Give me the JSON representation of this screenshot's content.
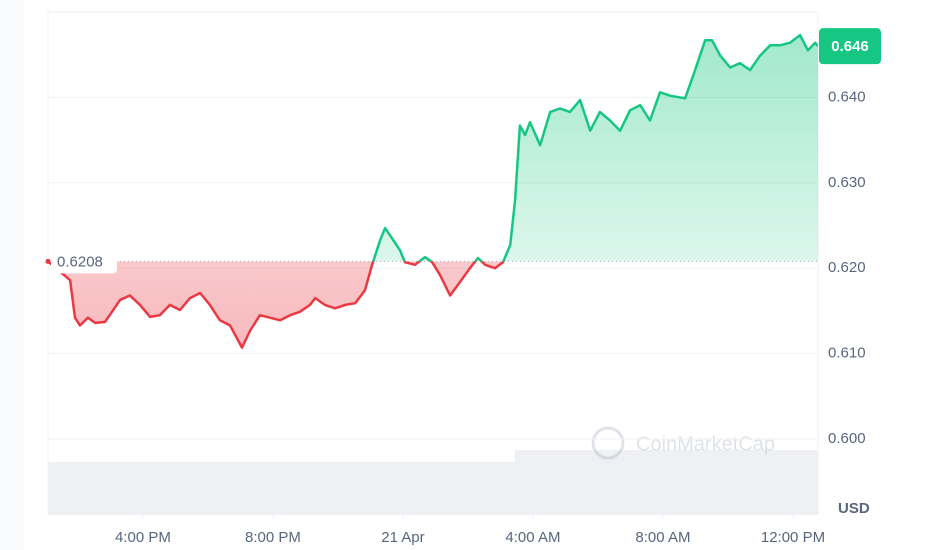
{
  "chart_data": {
    "type": "line",
    "series": [
      {
        "name": "Price",
        "color": "#16c784",
        "color_below": "#ea3943",
        "x": [
          13.08,
          13.76,
          13.91,
          14.06,
          14.31,
          14.53,
          14.83,
          15.05,
          15.3,
          15.6,
          15.91,
          16.22,
          16.52,
          16.83,
          17.14,
          17.45,
          17.76,
          18.06,
          18.37,
          18.68,
          19.05,
          19.3,
          19.6,
          19.91,
          20.22,
          20.53,
          20.83,
          21.14,
          21.3,
          21.6,
          21.91,
          22.22,
          22.53,
          22.83,
          23.05,
          23.3,
          23.45,
          23.7,
          23.91,
          24.06,
          24.37,
          24.68,
          24.9,
          25.14,
          25.45,
          25.76,
          26.06,
          26.31,
          26.53,
          26.83,
          27.08,
          27.3,
          27.45,
          27.6,
          27.76,
          27.91,
          28.22,
          28.53,
          28.83,
          29.14,
          29.45,
          29.76,
          30.06,
          30.37,
          30.68,
          30.99,
          31.3,
          31.6,
          31.91,
          32.22,
          32.68,
          32.99,
          33.3,
          33.51,
          33.76,
          34.07,
          34.37,
          34.68,
          34.99,
          35.3,
          35.6,
          35.91,
          36.22,
          36.46,
          36.68,
          36.77
        ],
        "values": [
          0.6208,
          0.6186,
          0.6142,
          0.6133,
          0.6142,
          0.6136,
          0.6137,
          0.6149,
          0.6163,
          0.6168,
          0.6157,
          0.6143,
          0.6145,
          0.6157,
          0.6151,
          0.6165,
          0.6171,
          0.6157,
          0.6139,
          0.6133,
          0.6107,
          0.6127,
          0.6145,
          0.6142,
          0.6139,
          0.6145,
          0.6149,
          0.6157,
          0.6165,
          0.6157,
          0.6153,
          0.6157,
          0.6159,
          0.6174,
          0.6204,
          0.6233,
          0.6247,
          0.6233,
          0.6221,
          0.6207,
          0.6204,
          0.6213,
          0.6207,
          0.6192,
          0.6168,
          0.6184,
          0.62,
          0.6212,
          0.6204,
          0.62,
          0.6207,
          0.6227,
          0.628,
          0.6367,
          0.6356,
          0.6371,
          0.6344,
          0.6383,
          0.6387,
          0.6383,
          0.6397,
          0.6361,
          0.6383,
          0.6373,
          0.6361,
          0.6385,
          0.6391,
          0.6373,
          0.6406,
          0.6402,
          0.6399,
          0.6432,
          0.6467,
          0.6467,
          0.6449,
          0.6435,
          0.644,
          0.6432,
          0.6449,
          0.6461,
          0.6461,
          0.6464,
          0.6473,
          0.6455,
          0.6464,
          0.646
        ]
      }
    ],
    "reference_price": 0.6208,
    "last_price": 0.646,
    "xlim": [
      13.08,
      36.77
    ],
    "xticks": [
      {
        "value": 16,
        "label": "4:00 PM"
      },
      {
        "value": 20,
        "label": "8:00 PM"
      },
      {
        "value": 24,
        "label": "21 Apr"
      },
      {
        "value": 28,
        "label": "4:00 AM"
      },
      {
        "value": 32,
        "label": "8:00 AM"
      },
      {
        "value": 36,
        "label": "12:00 PM"
      }
    ],
    "ylim": [
      0.6,
      0.65
    ],
    "yticks": [
      {
        "value": 0.6,
        "label": "0.600"
      },
      {
        "value": 0.61,
        "label": "0.610"
      },
      {
        "value": 0.62,
        "label": "0.620"
      },
      {
        "value": 0.63,
        "label": "0.630"
      },
      {
        "value": 0.64,
        "label": "0.640"
      }
    ],
    "y_unit": "USD",
    "watermark": "CoinMarketCap",
    "grid": true
  }
}
